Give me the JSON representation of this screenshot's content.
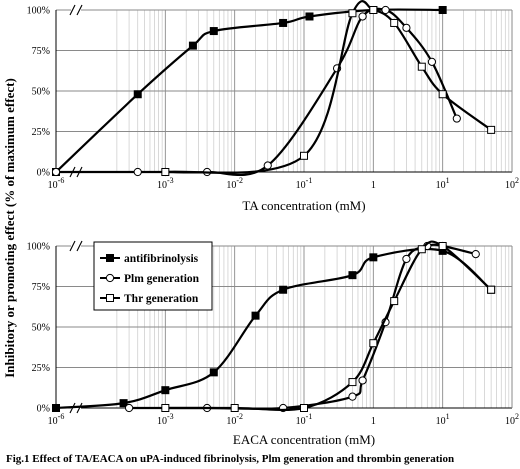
{
  "ylabel": "Inhibitory or promoting effect (% of maximum effect)",
  "caption": "Fig.1 Effect of TA/EACA on uPA-induced fibrinolysis, Plm generation and thrombin generation",
  "x_tick_labels": [
    "10",
    "10",
    "10",
    "10",
    "1",
    "10",
    "10"
  ],
  "x_tick_exponents": [
    "-6",
    "-3",
    "-2",
    "-1",
    "",
    "1",
    "2"
  ],
  "y_tick_labels": [
    "0%",
    "25%",
    "50%",
    "75%",
    "100%"
  ],
  "legend": {
    "antifibrinolysis": "antifibrinolysis",
    "plm": "Plm generation",
    "thr": "Thr generation"
  },
  "chart_data": [
    {
      "type": "line",
      "xlabel": "TA concentration (mM)",
      "ylabel": "Inhibitory or promoting effect (% of maximum effect)",
      "x_scale": "log with axis break between 1e-6 and 1e-4",
      "xlim": [
        1e-06,
        100
      ],
      "ylim": [
        0,
        100
      ],
      "grid": true,
      "series": [
        {
          "name": "antifibrinolysis",
          "marker": "filled-square",
          "x": [
            1e-06,
            0.0004,
            0.0025,
            0.005,
            0.05,
            0.12,
            1.0,
            10.0
          ],
          "y": [
            0,
            48,
            78,
            87,
            92,
            96,
            100,
            100
          ]
        },
        {
          "name": "Plm generation",
          "marker": "open-circle",
          "x": [
            1e-06,
            0.0004,
            0.001,
            0.004,
            0.03,
            0.3,
            0.7,
            1.5,
            3.0,
            7.0,
            16.0
          ],
          "y": [
            0,
            0,
            0,
            0,
            4,
            64,
            96,
            100,
            89,
            68,
            33
          ]
        },
        {
          "name": "Thr generation",
          "marker": "open-square",
          "x": [
            0.001,
            0.1,
            0.5,
            1.0,
            2.0,
            5.0,
            10.0,
            50.0
          ],
          "y": [
            0,
            10,
            98,
            100,
            92,
            65,
            48,
            26
          ]
        }
      ]
    },
    {
      "type": "line",
      "xlabel": "EACA concentration (mM)",
      "ylabel": "Inhibitory or promoting effect (% of maximum effect)",
      "x_scale": "log with axis break between 1e-6 and 1e-4",
      "xlim": [
        1e-06,
        100
      ],
      "ylim": [
        0,
        100
      ],
      "grid": true,
      "legend_position": "top-left",
      "series": [
        {
          "name": "antifibrinolysis",
          "marker": "filled-square",
          "x": [
            1e-06,
            0.00025,
            0.001,
            0.005,
            0.02,
            0.05,
            0.5,
            1.0,
            10.0,
            50.0
          ],
          "y": [
            0,
            3,
            11,
            22,
            57,
            73,
            82,
            93,
            97,
            73
          ]
        },
        {
          "name": "Plm generation",
          "marker": "open-circle",
          "x": [
            0.0003,
            0.004,
            0.05,
            0.5,
            0.7,
            1.5,
            3.0,
            6.0,
            10.0,
            30.0
          ],
          "y": [
            0,
            0,
            0,
            7,
            17,
            53,
            92,
            100,
            100,
            95
          ]
        },
        {
          "name": "Thr generation",
          "marker": "open-square",
          "x": [
            0.001,
            0.01,
            0.1,
            0.5,
            1.0,
            2.0,
            5.0,
            10.0,
            50.0
          ],
          "y": [
            0,
            0,
            0,
            16,
            40,
            66,
            98,
            100,
            73
          ]
        }
      ]
    }
  ]
}
